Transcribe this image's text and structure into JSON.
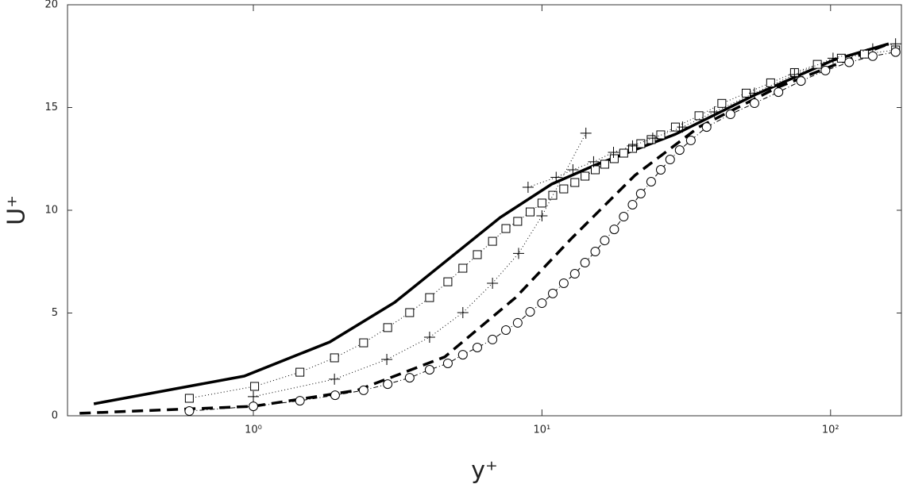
{
  "chart_data": {
    "type": "line",
    "xscale": "log",
    "xlabel": "y⁺",
    "ylabel": "U⁺",
    "xlim": [
      0.227,
      176
    ],
    "ylim": [
      0,
      20
    ],
    "xticks": [
      {
        "value": 1,
        "label": "10⁰"
      },
      {
        "value": 10,
        "label": "10¹"
      },
      {
        "value": 100,
        "label": "10²"
      }
    ],
    "yticks": [
      0,
      5,
      10,
      15,
      20
    ],
    "grid": false,
    "series": [
      {
        "color": "#000000",
        "line_style": "solid",
        "line_width": 3.5,
        "marker": "none",
        "x": [
          0.28,
          0.93,
          1.84,
          3.09,
          7.17,
          10.8,
          15.3,
          29,
          54.4,
          102,
          159
        ],
        "values": [
          0.58,
          1.93,
          3.59,
          5.52,
          9.65,
          11.27,
          12.2,
          13.7,
          15.6,
          17.3,
          18.1
        ]
      },
      {
        "color": "#000000",
        "line_style": "dashed",
        "line_width": 3.5,
        "marker": "none",
        "x": [
          0.25,
          1.0,
          2.29,
          4.6,
          8.1,
          12.7,
          21,
          35,
          66,
          159
        ],
        "values": [
          0.12,
          0.46,
          1.24,
          2.86,
          5.75,
          8.65,
          11.7,
          14.05,
          16.0,
          18.1
        ]
      },
      {
        "color": "#000000",
        "line_style": "dotted",
        "line_width": 1,
        "marker": "square",
        "x": [
          0.6,
          1.01,
          1.45,
          1.91,
          2.41,
          2.92,
          3.48,
          4.08,
          4.72,
          5.32,
          5.97,
          6.74,
          7.5,
          8.24,
          9.1,
          10,
          10.9,
          11.9,
          13,
          14.1,
          15.3,
          16.5,
          17.8,
          19.2,
          20.6,
          22,
          23.9,
          25.8,
          29,
          35,
          42,
          51,
          62,
          75,
          90,
          109,
          131,
          168
        ],
        "values": [
          0.85,
          1.43,
          2.12,
          2.82,
          3.55,
          4.29,
          5.02,
          5.75,
          6.52,
          7.18,
          7.84,
          8.49,
          9.11,
          9.46,
          9.92,
          10.35,
          10.73,
          11.04,
          11.35,
          11.66,
          11.97,
          12.24,
          12.51,
          12.78,
          13.01,
          13.24,
          13.44,
          13.67,
          14.05,
          14.6,
          15.2,
          15.7,
          16.2,
          16.7,
          17.1,
          17.4,
          17.6,
          17.8
        ]
      },
      {
        "color": "#000000",
        "line_style": "dotted",
        "line_width": 1,
        "marker": "plus",
        "x": [
          1.0,
          1.91,
          2.9,
          4.08,
          5.32,
          6.74,
          8.3,
          10,
          14.2
        ],
        "values": [
          0.93,
          1.78,
          2.74,
          3.82,
          5.02,
          6.45,
          7.9,
          9.73,
          13.75
        ]
      },
      {
        "color": "#000000",
        "line_style": "dotted",
        "line_width": 1,
        "marker": "plus",
        "x": [
          8.95,
          11.2,
          12.8,
          15.1,
          17.7,
          20.6,
          24.2,
          30.7,
          39.6,
          54.5,
          75,
          102,
          140,
          168
        ],
        "values": [
          11.12,
          11.6,
          11.97,
          12.36,
          12.82,
          13.13,
          13.51,
          14.05,
          14.79,
          15.7,
          16.6,
          17.4,
          17.85,
          18.1
        ]
      },
      {
        "color": "#000000",
        "line_style": "dashdot",
        "line_width": 1,
        "marker": "circle",
        "x": [
          0.6,
          1.0,
          1.45,
          1.92,
          2.41,
          2.92,
          3.48,
          4.08,
          4.72,
          5.32,
          5.97,
          6.74,
          7.5,
          8.24,
          9.1,
          10,
          10.9,
          11.9,
          13,
          14.1,
          15.3,
          16.5,
          17.8,
          19.2,
          20.6,
          22,
          23.9,
          25.8,
          27.8,
          30,
          32.8,
          37.2,
          45,
          54.5,
          66,
          79,
          96,
          116,
          140,
          168
        ],
        "values": [
          0.23,
          0.46,
          0.73,
          1.0,
          1.24,
          1.54,
          1.85,
          2.24,
          2.55,
          2.97,
          3.32,
          3.71,
          4.17,
          4.52,
          5.06,
          5.48,
          5.95,
          6.45,
          6.91,
          7.45,
          7.99,
          8.53,
          9.07,
          9.69,
          10.27,
          10.81,
          11.39,
          11.97,
          12.47,
          12.93,
          13.4,
          14.05,
          14.67,
          15.21,
          15.75,
          16.29,
          16.8,
          17.2,
          17.5,
          17.7
        ]
      }
    ]
  }
}
